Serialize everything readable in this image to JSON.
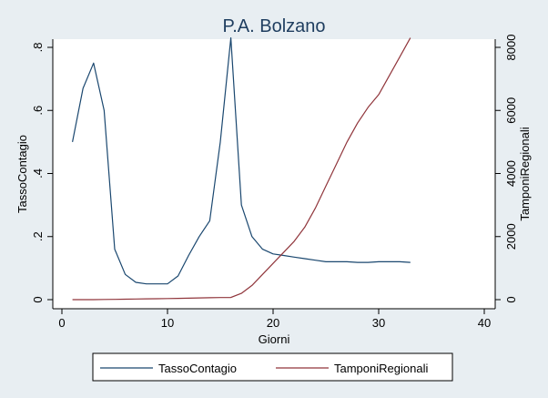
{
  "chart_data": {
    "type": "line",
    "title": "P.A. Bolzano",
    "xlabel": "Giorni",
    "ylabel_left": "TassoContagio",
    "ylabel_right": "TamponiRegionali",
    "xlim": [
      0,
      40
    ],
    "ylim_left": [
      0,
      0.8
    ],
    "ylim_right": [
      0,
      8000
    ],
    "x_ticks": [
      "0",
      "10",
      "20",
      "30",
      "40"
    ],
    "x_tick_values": [
      0,
      10,
      20,
      30,
      40
    ],
    "y_left_ticks": [
      "0",
      ".2",
      ".4",
      ".6",
      ".8"
    ],
    "y_left_tick_values": [
      0,
      0.2,
      0.4,
      0.6,
      0.8
    ],
    "y_right_ticks": [
      "0",
      "2000",
      "4000",
      "6000",
      "8000"
    ],
    "y_right_tick_values": [
      0,
      2000,
      4000,
      6000,
      8000
    ],
    "grid": false,
    "legend_position": "bottom",
    "x": [
      1,
      2,
      3,
      4,
      5,
      6,
      7,
      8,
      9,
      10,
      11,
      12,
      13,
      14,
      15,
      16,
      17,
      18,
      19,
      20,
      21,
      22,
      23,
      24,
      25,
      26,
      27,
      28,
      29,
      30,
      31,
      32,
      33
    ],
    "series": [
      {
        "name": "TassoContagio",
        "axis": "left",
        "color": "#1a476f",
        "values": [
          0.5,
          0.67,
          0.75,
          0.6,
          0.16,
          0.08,
          0.055,
          0.05,
          0.05,
          0.05,
          0.075,
          0.14,
          0.2,
          0.25,
          0.5,
          0.83,
          0.3,
          0.2,
          0.16,
          0.145,
          0.14,
          0.135,
          0.13,
          0.125,
          0.12,
          0.12,
          0.12,
          0.118,
          0.118,
          0.12,
          0.12,
          0.12,
          0.118
        ]
      },
      {
        "name": "TamponiRegionali",
        "axis": "right",
        "color": "#90353b",
        "values": [
          0,
          0,
          0,
          5,
          10,
          15,
          20,
          25,
          30,
          35,
          40,
          45,
          55,
          60,
          65,
          70,
          200,
          450,
          800,
          1150,
          1500,
          1850,
          2300,
          2900,
          3600,
          4300,
          5000,
          5600,
          6100,
          6500,
          7100,
          7700,
          8300
        ]
      }
    ]
  }
}
